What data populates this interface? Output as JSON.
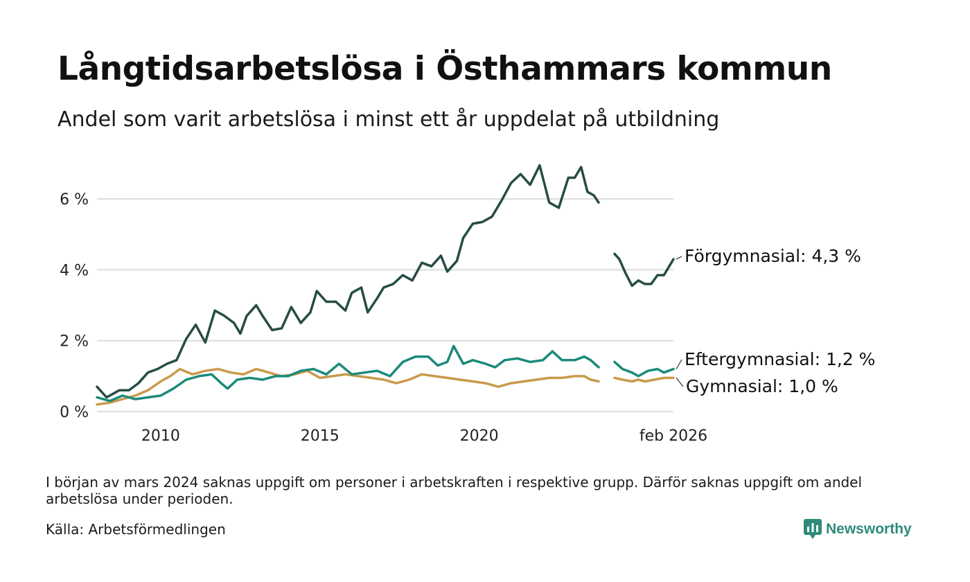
{
  "title": "Långtidsarbetslösa i Östhammars kommun",
  "subtitle": "Andel som varit arbetslösa i minst ett år uppdelat på utbildning",
  "note": "I början av mars 2024 saknas uppgift om personer i arbetskraften i respektive grupp. Därför saknas uppgift om andel arbetslösa under perioden.",
  "source": "Källa: Arbetsförmedlingen",
  "brand": "Newsworthy",
  "chart_data": {
    "type": "line",
    "title": "Långtidsarbetslösa i Östhammars kommun",
    "ylim": [
      0,
      7
    ],
    "yticks": [
      0,
      2,
      4,
      6
    ],
    "ytick_labels": [
      "0 %",
      "2 %",
      "4 %",
      "6 %"
    ],
    "xlim": [
      2008.0,
      2026.1
    ],
    "xticks": [
      2010,
      2015,
      2020,
      2026.1
    ],
    "xtick_labels": [
      "2010",
      "2015",
      "2020",
      "feb 2026"
    ],
    "gap": [
      2023.75,
      2024.25
    ],
    "grid": true,
    "series": [
      {
        "name": "Förgymnasial",
        "end_label": "Förgymnasial: 4,3 %",
        "color": "#254c45",
        "points": [
          [
            2008.0,
            0.7
          ],
          [
            2008.3,
            0.4
          ],
          [
            2008.7,
            0.6
          ],
          [
            2009.0,
            0.6
          ],
          [
            2009.3,
            0.8
          ],
          [
            2009.6,
            1.1
          ],
          [
            2009.9,
            1.2
          ],
          [
            2010.2,
            1.35
          ],
          [
            2010.5,
            1.45
          ],
          [
            2010.8,
            2.05
          ],
          [
            2011.1,
            2.45
          ],
          [
            2011.4,
            1.95
          ],
          [
            2011.7,
            2.85
          ],
          [
            2012.0,
            2.7
          ],
          [
            2012.3,
            2.5
          ],
          [
            2012.5,
            2.2
          ],
          [
            2012.7,
            2.7
          ],
          [
            2013.0,
            3.0
          ],
          [
            2013.2,
            2.7
          ],
          [
            2013.5,
            2.3
          ],
          [
            2013.8,
            2.35
          ],
          [
            2014.1,
            2.95
          ],
          [
            2014.4,
            2.5
          ],
          [
            2014.7,
            2.8
          ],
          [
            2014.9,
            3.4
          ],
          [
            2015.2,
            3.1
          ],
          [
            2015.5,
            3.1
          ],
          [
            2015.8,
            2.85
          ],
          [
            2016.0,
            3.35
          ],
          [
            2016.3,
            3.5
          ],
          [
            2016.5,
            2.8
          ],
          [
            2016.8,
            3.2
          ],
          [
            2017.0,
            3.5
          ],
          [
            2017.3,
            3.6
          ],
          [
            2017.6,
            3.85
          ],
          [
            2017.9,
            3.7
          ],
          [
            2018.2,
            4.2
          ],
          [
            2018.5,
            4.1
          ],
          [
            2018.8,
            4.4
          ],
          [
            2019.0,
            3.95
          ],
          [
            2019.3,
            4.25
          ],
          [
            2019.5,
            4.9
          ],
          [
            2019.8,
            5.3
          ],
          [
            2020.1,
            5.35
          ],
          [
            2020.4,
            5.5
          ],
          [
            2020.7,
            5.95
          ],
          [
            2021.0,
            6.45
          ],
          [
            2021.3,
            6.7
          ],
          [
            2021.6,
            6.4
          ],
          [
            2021.9,
            6.95
          ],
          [
            2022.2,
            5.9
          ],
          [
            2022.5,
            5.75
          ],
          [
            2022.8,
            6.6
          ],
          [
            2023.0,
            6.6
          ],
          [
            2023.2,
            6.9
          ],
          [
            2023.4,
            6.2
          ],
          [
            2023.6,
            6.1
          ],
          [
            2023.75,
            5.9
          ],
          [
            2024.25,
            4.45
          ],
          [
            2024.4,
            4.3
          ],
          [
            2024.6,
            3.9
          ],
          [
            2024.8,
            3.55
          ],
          [
            2025.0,
            3.7
          ],
          [
            2025.2,
            3.6
          ],
          [
            2025.4,
            3.6
          ],
          [
            2025.6,
            3.85
          ],
          [
            2025.8,
            3.85
          ],
          [
            2026.1,
            4.3
          ]
        ]
      },
      {
        "name": "Eftergymnasial",
        "end_label": "Eftergymnasial: 1,2 %",
        "color": "#1a8a7a",
        "points": [
          [
            2008.0,
            0.4
          ],
          [
            2008.4,
            0.3
          ],
          [
            2008.8,
            0.45
          ],
          [
            2009.2,
            0.35
          ],
          [
            2009.6,
            0.4
          ],
          [
            2010.0,
            0.45
          ],
          [
            2010.4,
            0.65
          ],
          [
            2010.8,
            0.9
          ],
          [
            2011.2,
            1.0
          ],
          [
            2011.6,
            1.05
          ],
          [
            2011.9,
            0.8
          ],
          [
            2012.1,
            0.65
          ],
          [
            2012.4,
            0.9
          ],
          [
            2012.8,
            0.95
          ],
          [
            2013.2,
            0.9
          ],
          [
            2013.6,
            1.0
          ],
          [
            2014.0,
            1.0
          ],
          [
            2014.4,
            1.15
          ],
          [
            2014.8,
            1.2
          ],
          [
            2015.2,
            1.05
          ],
          [
            2015.6,
            1.35
          ],
          [
            2016.0,
            1.05
          ],
          [
            2016.4,
            1.1
          ],
          [
            2016.8,
            1.15
          ],
          [
            2017.2,
            1.0
          ],
          [
            2017.6,
            1.4
          ],
          [
            2018.0,
            1.55
          ],
          [
            2018.4,
            1.55
          ],
          [
            2018.7,
            1.3
          ],
          [
            2019.0,
            1.4
          ],
          [
            2019.2,
            1.85
          ],
          [
            2019.5,
            1.35
          ],
          [
            2019.8,
            1.45
          ],
          [
            2020.2,
            1.35
          ],
          [
            2020.5,
            1.25
          ],
          [
            2020.8,
            1.45
          ],
          [
            2021.2,
            1.5
          ],
          [
            2021.6,
            1.4
          ],
          [
            2022.0,
            1.45
          ],
          [
            2022.3,
            1.7
          ],
          [
            2022.6,
            1.45
          ],
          [
            2023.0,
            1.45
          ],
          [
            2023.3,
            1.55
          ],
          [
            2023.5,
            1.45
          ],
          [
            2023.75,
            1.25
          ],
          [
            2024.25,
            1.4
          ],
          [
            2024.5,
            1.2
          ],
          [
            2024.8,
            1.1
          ],
          [
            2025.0,
            1.0
          ],
          [
            2025.3,
            1.15
          ],
          [
            2025.6,
            1.2
          ],
          [
            2025.8,
            1.1
          ],
          [
            2026.1,
            1.2
          ]
        ]
      },
      {
        "name": "Gymnasial",
        "end_label": "Gymnasial: 1,0 %",
        "color": "#c99a4a",
        "points": [
          [
            2008.0,
            0.2
          ],
          [
            2008.4,
            0.25
          ],
          [
            2008.8,
            0.35
          ],
          [
            2009.2,
            0.45
          ],
          [
            2009.6,
            0.6
          ],
          [
            2010.0,
            0.85
          ],
          [
            2010.3,
            1.0
          ],
          [
            2010.6,
            1.2
          ],
          [
            2011.0,
            1.05
          ],
          [
            2011.4,
            1.15
          ],
          [
            2011.8,
            1.2
          ],
          [
            2012.2,
            1.1
          ],
          [
            2012.6,
            1.05
          ],
          [
            2013.0,
            1.2
          ],
          [
            2013.4,
            1.1
          ],
          [
            2013.8,
            1.0
          ],
          [
            2014.2,
            1.05
          ],
          [
            2014.6,
            1.15
          ],
          [
            2015.0,
            0.95
          ],
          [
            2015.4,
            1.0
          ],
          [
            2015.8,
            1.05
          ],
          [
            2016.2,
            1.0
          ],
          [
            2016.6,
            0.95
          ],
          [
            2017.0,
            0.9
          ],
          [
            2017.4,
            0.8
          ],
          [
            2017.8,
            0.9
          ],
          [
            2018.2,
            1.05
          ],
          [
            2018.6,
            1.0
          ],
          [
            2019.0,
            0.95
          ],
          [
            2019.4,
            0.9
          ],
          [
            2019.8,
            0.85
          ],
          [
            2020.2,
            0.8
          ],
          [
            2020.6,
            0.7
          ],
          [
            2021.0,
            0.8
          ],
          [
            2021.4,
            0.85
          ],
          [
            2021.8,
            0.9
          ],
          [
            2022.2,
            0.95
          ],
          [
            2022.6,
            0.95
          ],
          [
            2023.0,
            1.0
          ],
          [
            2023.3,
            1.0
          ],
          [
            2023.5,
            0.9
          ],
          [
            2023.75,
            0.85
          ],
          [
            2024.25,
            0.95
          ],
          [
            2024.5,
            0.9
          ],
          [
            2024.8,
            0.85
          ],
          [
            2025.0,
            0.9
          ],
          [
            2025.2,
            0.85
          ],
          [
            2025.5,
            0.9
          ],
          [
            2025.8,
            0.95
          ],
          [
            2026.1,
            0.95
          ]
        ]
      }
    ]
  }
}
